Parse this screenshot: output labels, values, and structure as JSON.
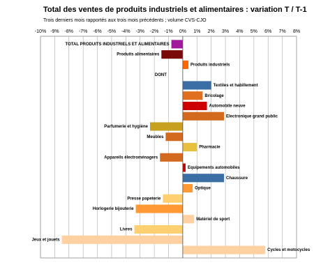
{
  "chart_data": {
    "type": "hbar",
    "title": "Total des ventes de produits industriels et alimentaires : variation T / T-1",
    "subtitle": "Trois derniers mois rapportés aux trois mois précédents ; volume CVS-CJO",
    "categories": [
      "TOTAL PRODUITS INDUSTRIELS ET ALIMENTAIRES",
      "Produits alimentaires",
      "Produits industriels",
      "DONT",
      "Textiles et habillement",
      "Bricolage",
      "Automobile neuve",
      "Electronique grand public",
      "Parfumerie et hygiène",
      "Meubles",
      "Pharmacie",
      "Appareils électroménagers",
      "Equipements automobiles",
      "Chaussure",
      "Optique",
      "Presse papeterie",
      "Horlogerie bijouterie",
      "Matériel de sport",
      "Livres",
      "Jeux et jouets",
      "Cycles et motocycles"
    ],
    "values": [
      -0.8,
      -1.5,
      0.4,
      null,
      2.0,
      1.4,
      1.7,
      2.9,
      -2.3,
      -1.2,
      1.0,
      -1.6,
      0.2,
      2.9,
      0.7,
      -1.4,
      -3.3,
      0.8,
      -3.4,
      -8.5,
      5.8
    ],
    "colors": [
      "#a0189c",
      "#7b0a0a",
      "#ff6600",
      "#ffffff",
      "#3a6ea5",
      "#e07020",
      "#cc0000",
      "#d2691e",
      "#c8a020",
      "#d2691e",
      "#e8c040",
      "#d2691e",
      "#cc0000",
      "#3a6ea5",
      "#ff9933",
      "#ffd070",
      "#ff9933",
      "#ffd0a0",
      "#ffd070",
      "#ffd0a0",
      "#ffd0a0"
    ],
    "xlim": [
      -10,
      8
    ],
    "xticks": [
      {
        "value": -10,
        "label": "-10%"
      },
      {
        "value": -9,
        "label": "-9%"
      },
      {
        "value": -8,
        "label": "-8%"
      },
      {
        "value": -7,
        "label": "-7%"
      },
      {
        "value": -6,
        "label": "-6%"
      },
      {
        "value": -5,
        "label": "-5%"
      },
      {
        "value": -4,
        "label": "-4%"
      },
      {
        "value": -3,
        "label": "-3%"
      },
      {
        "value": -2,
        "label": "-2%"
      },
      {
        "value": -1,
        "label": "-1%"
      },
      {
        "value": 0,
        "label": "0%"
      },
      {
        "value": 1,
        "label": "1%"
      },
      {
        "value": 2,
        "label": "2%"
      },
      {
        "value": 3,
        "label": "3%"
      },
      {
        "value": 4,
        "label": "4%"
      },
      {
        "value": 5,
        "label": "5%"
      },
      {
        "value": 6,
        "label": "6%"
      },
      {
        "value": 7,
        "label": "7%"
      },
      {
        "value": 8,
        "label": "8%"
      }
    ],
    "grid": true
  }
}
